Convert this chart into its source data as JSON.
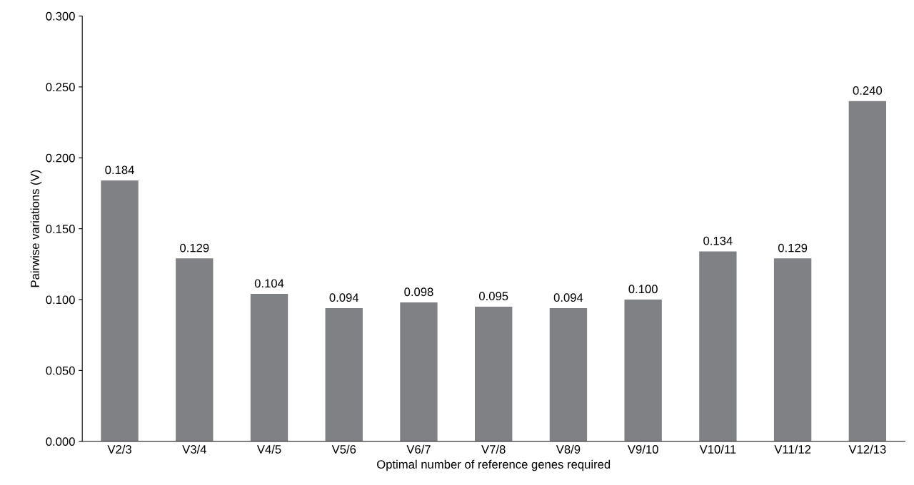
{
  "chart_data": {
    "type": "bar",
    "xlabel": "Optimal number of reference genes required",
    "ylabel": "Pairwise variations (V)",
    "categories": [
      "V2/3",
      "V3/4",
      "V4/5",
      "V5/6",
      "V6/7",
      "V7/8",
      "V8/9",
      "V9/10",
      "V10/11",
      "V11/12",
      "V12/13"
    ],
    "values": [
      0.184,
      0.129,
      0.104,
      0.094,
      0.098,
      0.095,
      0.094,
      0.1,
      0.134,
      0.129,
      0.24
    ],
    "value_labels": [
      "0.184",
      "0.129",
      "0.104",
      "0.094",
      "0.098",
      "0.095",
      "0.094",
      "0.100",
      "0.134",
      "0.129",
      "0.240"
    ],
    "color": "#808184",
    "ylim": [
      0,
      0.3
    ],
    "yticks": [
      {
        "value": 0,
        "label": "0.000"
      },
      {
        "value": 0.05,
        "label": "0.050"
      },
      {
        "value": 0.1,
        "label": "0.100"
      },
      {
        "value": 0.15,
        "label": "0.150"
      },
      {
        "value": 0.2,
        "label": "0.200"
      },
      {
        "value": 0.25,
        "label": "0.250"
      },
      {
        "value": 0.3,
        "label": "0.300"
      }
    ],
    "grid": false
  }
}
